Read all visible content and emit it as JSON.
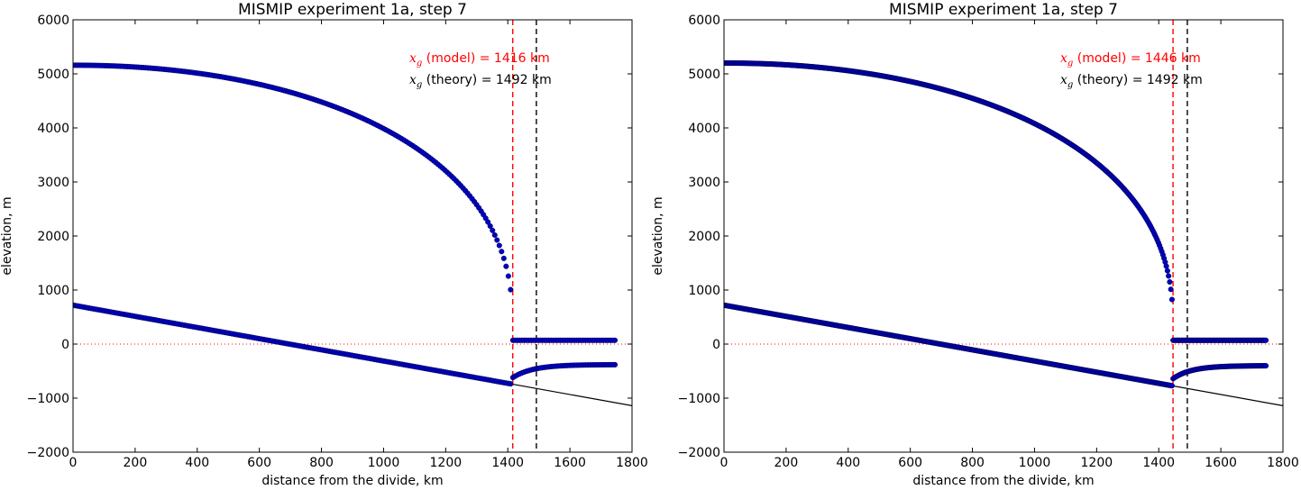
{
  "colors": {
    "marker": "#0000c0",
    "marker_edge": "#00004d",
    "model_line": "#ff0000",
    "theory_line": "#000000",
    "sea_level": "#ff0000",
    "bed": "#000000"
  },
  "chart_data": [
    {
      "type": "scatter",
      "title": "MISMIP experiment 1a, step 7",
      "xlabel": "distance from the divide, km",
      "ylabel": "elevation, m",
      "xlim": [
        0,
        1800
      ],
      "ylim": [
        -2000,
        6000
      ],
      "xticks": [
        "0",
        "200",
        "400",
        "600",
        "800",
        "1000",
        "1200",
        "1400",
        "1600",
        "1800"
      ],
      "yticks": [
        "−2000",
        "−1000",
        "0",
        "1000",
        "2000",
        "3000",
        "4000",
        "5000",
        "6000"
      ],
      "grid": false,
      "n_points": 240,
      "annotations": [
        {
          "symbol": "x",
          "subscript": "g",
          "text": " (model) = 1416 km",
          "color": "#ff0000"
        },
        {
          "symbol": "x",
          "subscript": "g",
          "text": " (theory) = 1492 km",
          "color": "#000000"
        }
      ],
      "x_model": 1416,
      "x_theory": 1492,
      "ice_surface": {
        "at_divide": 5160,
        "at_grounding_line": 300,
        "shelf": 70
      },
      "ice_base": {
        "at_divide": 720,
        "at_grounding_line": -730,
        "shelf_after_gl": -620,
        "shelf_end": -380
      },
      "bed": {
        "at_0": 720,
        "at_1800": -1140
      },
      "sea_level": 0,
      "x_end": 1745
    },
    {
      "type": "scatter",
      "title": "MISMIP experiment 1a, step 7",
      "xlabel": "distance from the divide, km",
      "ylabel": "elevation, m",
      "xlim": [
        0,
        1800
      ],
      "ylim": [
        -2000,
        6000
      ],
      "xticks": [
        "0",
        "200",
        "400",
        "600",
        "800",
        "1000",
        "1200",
        "1400",
        "1600",
        "1800"
      ],
      "yticks": [
        "−2000",
        "−1000",
        "0",
        "1000",
        "2000",
        "3000",
        "4000",
        "5000",
        "6000"
      ],
      "grid": false,
      "n_points": 480,
      "annotations": [
        {
          "symbol": "x",
          "subscript": "g",
          "text": " (model) = 1446 km",
          "color": "#ff0000"
        },
        {
          "symbol": "x",
          "subscript": "g",
          "text": " (theory) = 1492 km",
          "color": "#000000"
        }
      ],
      "x_model": 1446,
      "x_theory": 1492,
      "ice_surface": {
        "at_divide": 5200,
        "at_grounding_line": 300,
        "shelf": 70
      },
      "ice_base": {
        "at_divide": 720,
        "at_grounding_line": -770,
        "shelf_after_gl": -640,
        "shelf_end": -400
      },
      "bed": {
        "at_0": 720,
        "at_1800": -1140
      },
      "sea_level": 0,
      "x_end": 1745
    }
  ]
}
